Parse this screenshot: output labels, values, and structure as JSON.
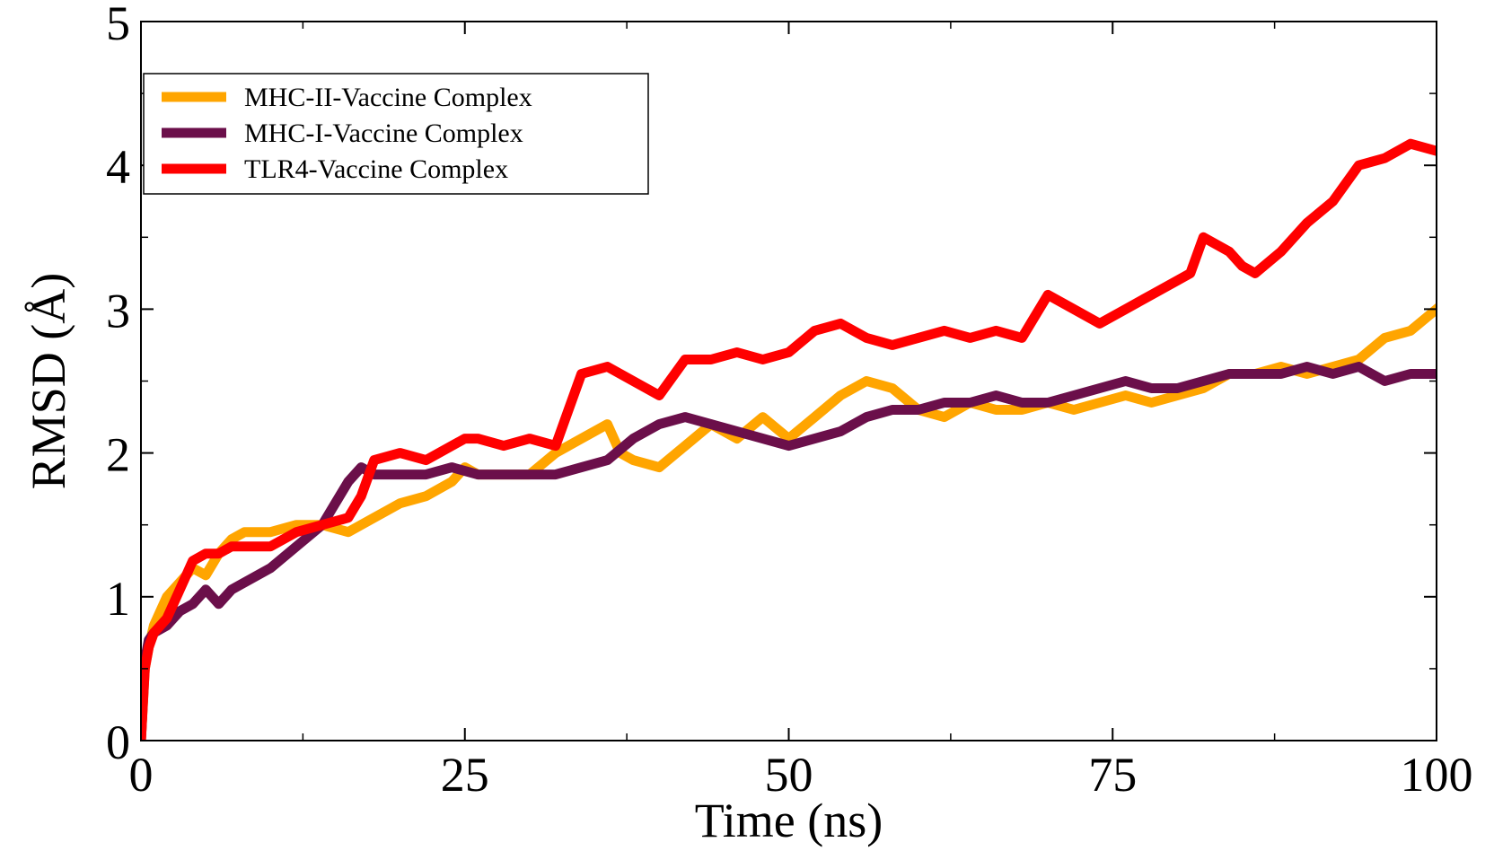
{
  "chart_data": {
    "type": "line",
    "title": "",
    "xlabel": "Time (ns)",
    "ylabel": "RMSD (Å)",
    "xlim": [
      0,
      100
    ],
    "ylim": [
      0,
      5
    ],
    "xticks": [
      0,
      25,
      50,
      75,
      100
    ],
    "xtick_labels": [
      "0",
      "25",
      "50",
      "75",
      "100"
    ],
    "yticks": [
      0,
      1,
      2,
      3,
      4,
      5
    ],
    "ytick_labels": [
      "0",
      "1",
      "2",
      "3",
      "4",
      "5"
    ],
    "grid": false,
    "legend_position": "top-left",
    "series": [
      {
        "name": "MHC-II-Vaccine Complex",
        "color": "#FFA500",
        "x": [
          0,
          0.3,
          0.6,
          1,
          2,
          3,
          4,
          5,
          6,
          7,
          8,
          10,
          12,
          14,
          16,
          17,
          18,
          19,
          20,
          22,
          24,
          25,
          26,
          28,
          30,
          32,
          34,
          36,
          37,
          38,
          40,
          42,
          44,
          46,
          48,
          50,
          52,
          54,
          56,
          58,
          60,
          62,
          64,
          66,
          68,
          70,
          72,
          74,
          76,
          78,
          80,
          82,
          84,
          86,
          88,
          90,
          92,
          94,
          96,
          98,
          100
        ],
        "y": [
          0,
          0.5,
          0.65,
          0.8,
          1.0,
          1.1,
          1.2,
          1.15,
          1.3,
          1.4,
          1.45,
          1.45,
          1.5,
          1.5,
          1.45,
          1.5,
          1.55,
          1.6,
          1.65,
          1.7,
          1.8,
          1.9,
          1.85,
          1.85,
          1.85,
          2.0,
          2.1,
          2.2,
          2.0,
          1.95,
          1.9,
          2.05,
          2.2,
          2.1,
          2.25,
          2.1,
          2.25,
          2.4,
          2.5,
          2.45,
          2.3,
          2.25,
          2.35,
          2.3,
          2.3,
          2.35,
          2.3,
          2.35,
          2.4,
          2.35,
          2.4,
          2.45,
          2.55,
          2.55,
          2.6,
          2.55,
          2.6,
          2.65,
          2.8,
          2.85,
          3.0
        ]
      },
      {
        "name": "MHC-I-Vaccine Complex",
        "color": "#6B0F4A",
        "x": [
          0,
          0.3,
          0.6,
          1,
          2,
          3,
          4,
          5,
          6,
          7,
          8,
          10,
          12,
          14,
          15,
          16,
          17,
          18,
          20,
          22,
          24,
          26,
          28,
          30,
          32,
          34,
          36,
          38,
          40,
          42,
          44,
          46,
          48,
          50,
          52,
          54,
          56,
          58,
          60,
          62,
          64,
          66,
          68,
          70,
          72,
          74,
          76,
          78,
          80,
          82,
          84,
          86,
          88,
          90,
          92,
          94,
          96,
          98,
          100
        ],
        "y": [
          0,
          0.55,
          0.7,
          0.75,
          0.8,
          0.9,
          0.95,
          1.05,
          0.95,
          1.05,
          1.1,
          1.2,
          1.35,
          1.5,
          1.65,
          1.8,
          1.9,
          1.85,
          1.85,
          1.85,
          1.9,
          1.85,
          1.85,
          1.85,
          1.85,
          1.9,
          1.95,
          2.1,
          2.2,
          2.25,
          2.2,
          2.15,
          2.1,
          2.05,
          2.1,
          2.15,
          2.25,
          2.3,
          2.3,
          2.35,
          2.35,
          2.4,
          2.35,
          2.35,
          2.4,
          2.45,
          2.5,
          2.45,
          2.45,
          2.5,
          2.55,
          2.55,
          2.55,
          2.6,
          2.55,
          2.6,
          2.5,
          2.55,
          2.55
        ]
      },
      {
        "name": "TLR4-Vaccine Complex",
        "color": "#FF0000",
        "x": [
          0,
          0.3,
          0.6,
          1,
          2,
          3,
          4,
          5,
          6,
          7,
          8,
          10,
          12,
          14,
          16,
          17,
          18,
          20,
          22,
          24,
          25,
          26,
          28,
          30,
          32,
          33,
          34,
          36,
          38,
          40,
          42,
          44,
          46,
          48,
          50,
          52,
          54,
          56,
          58,
          60,
          62,
          64,
          66,
          68,
          70,
          72,
          74,
          76,
          78,
          80,
          81,
          82,
          84,
          85,
          86,
          88,
          90,
          92,
          94,
          96,
          98,
          100
        ],
        "y": [
          0,
          0.5,
          0.65,
          0.75,
          0.85,
          1.05,
          1.25,
          1.3,
          1.3,
          1.35,
          1.35,
          1.35,
          1.45,
          1.5,
          1.55,
          1.7,
          1.95,
          2.0,
          1.95,
          2.05,
          2.1,
          2.1,
          2.05,
          2.1,
          2.05,
          2.3,
          2.55,
          2.6,
          2.5,
          2.4,
          2.65,
          2.65,
          2.7,
          2.65,
          2.7,
          2.85,
          2.9,
          2.8,
          2.75,
          2.8,
          2.85,
          2.8,
          2.85,
          2.8,
          3.1,
          3.0,
          2.9,
          3.0,
          3.1,
          3.2,
          3.25,
          3.5,
          3.4,
          3.3,
          3.25,
          3.4,
          3.6,
          3.75,
          4.0,
          4.05,
          4.15,
          4.1
        ]
      }
    ]
  }
}
